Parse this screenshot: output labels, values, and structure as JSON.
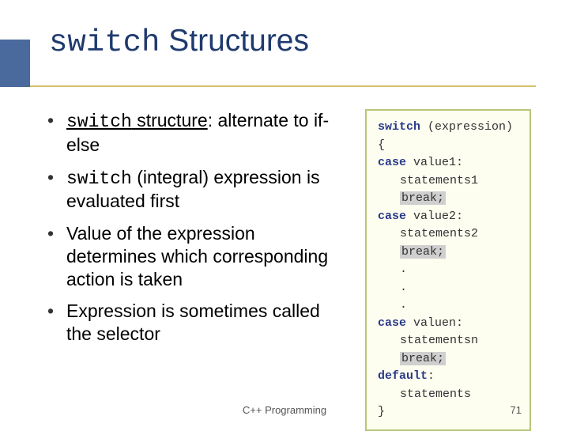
{
  "title": {
    "mono": "switch",
    "rest": " Structures"
  },
  "bullets": {
    "b1_mono": "switch",
    "b1_rest_u": " structure",
    "b1_rest": ": alternate to if-else",
    "b2_mono": "switch",
    "b2_rest": " (integral) expression is evaluated first",
    "b3": "Value of the expression determines which corresponding action is taken",
    "b4": "Expression is sometimes called the selector"
  },
  "code": {
    "l1a": "switch",
    "l1b": " (expression)",
    "l2": "{",
    "l3a": "case",
    "l3b": " value1:",
    "l4": "statements1",
    "l5": "break;",
    "l6a": "case",
    "l6b": " value2:",
    "l7": "statements2",
    "l8": "break;",
    "dot": ".",
    "l9a": "case",
    "l9b": " valuen:",
    "l10": "statementsn",
    "l11": "break;",
    "l12a": "default",
    "l12b": ":",
    "l13": "statements",
    "l14": "}"
  },
  "footer": "C++ Programming",
  "page": "71",
  "colors": {
    "sidebar": "#4a6a9e",
    "rule": "#d4c16a",
    "title": "#1f3a6e",
    "code_border": "#b6c77a",
    "code_bg": "#fdfdf0",
    "keyword": "#2a3a8a",
    "highlight": "#cfcfcf"
  }
}
